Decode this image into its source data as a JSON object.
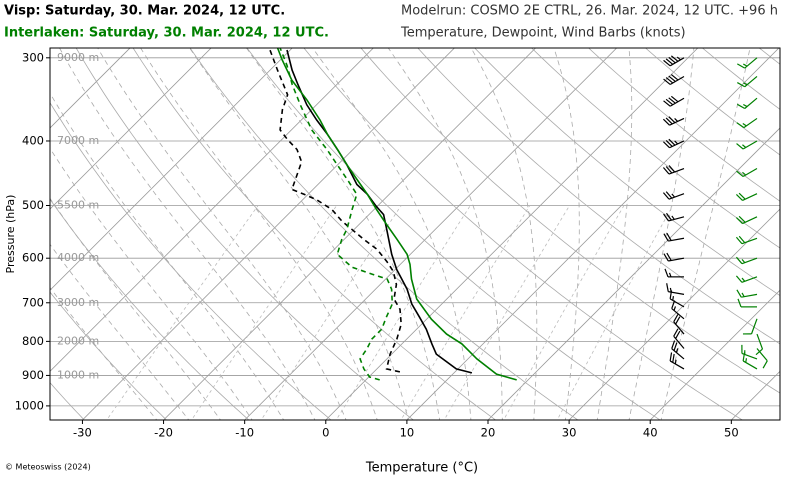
{
  "chart_data": {
    "type": "skewt",
    "header_right": [
      "Modelrun: COSMO 2E CTRL, 26. Mar. 2024, 12 UTC. +96 h",
      "Temperature, Dewpoint, Wind Barbs (knots)"
    ],
    "xlabel": "Temperature (°C)",
    "ylabel": "Pressure (hPa)",
    "footer": "© Meteoswiss (2024)",
    "xlim": [
      -34,
      56
    ],
    "xticks": [
      -30,
      -20,
      -10,
      0,
      10,
      20,
      30,
      40,
      50
    ],
    "ylim": [
      1050,
      290
    ],
    "log_y": true,
    "yticks": [
      300,
      400,
      500,
      600,
      700,
      800,
      900,
      1000
    ],
    "altitude_labels": [
      "9000 m",
      "7000 m",
      "5500 m",
      "4000 m",
      "3000 m",
      "2000 m",
      "1000 m",
      null
    ],
    "grid": true,
    "stations": [
      {
        "title": "Visp: Saturday, 30. Mar. 2024, 12 UTC.",
        "color": "#000000",
        "temperature": {
          "pressure": [
            892,
            880,
            836,
            807,
            767,
            736,
            703,
            668,
            645,
            624,
            592,
            543,
            516,
            500,
            481,
            465,
            434,
            412,
            391,
            372,
            353,
            329,
            313,
            292
          ],
          "values": [
            12.2,
            9.8,
            5.5,
            3.7,
            1.2,
            -1.1,
            -3.7,
            -6.1,
            -8.0,
            -9.8,
            -12.3,
            -16.0,
            -18.2,
            -20.3,
            -22.7,
            -25.2,
            -28.9,
            -31.9,
            -35.0,
            -38.1,
            -41.2,
            -44.8,
            -47.3,
            -50.4
          ]
        },
        "dewpoint": {
          "pressure": [
            889,
            880,
            836,
            794,
            754,
            716,
            691,
            657,
            628,
            607,
            582,
            562,
            543,
            528,
            507,
            490,
            481,
            473,
            449,
            430,
            412,
            398,
            385,
            359,
            341,
            313,
            292
          ],
          "values": [
            3.2,
            1.2,
            -0.2,
            -1.2,
            -2.5,
            -4.5,
            -6.5,
            -8.0,
            -10.0,
            -12.0,
            -14.7,
            -17.6,
            -20.3,
            -22.5,
            -25.2,
            -28.3,
            -30.5,
            -32.6,
            -33.8,
            -34.8,
            -36.9,
            -39.3,
            -41.4,
            -43.6,
            -44.8,
            -49.1,
            -52.5
          ]
        },
        "wind": {
          "pressure": [
            300,
            320,
            345,
            370,
            400,
            440,
            480,
            520,
            560,
            600,
            640,
            680,
            710,
            740,
            780,
            820,
            850,
            880
          ],
          "speed": [
            45,
            40,
            40,
            35,
            35,
            30,
            25,
            25,
            20,
            20,
            15,
            15,
            15,
            15,
            20,
            20,
            25,
            25
          ],
          "direction": [
            240,
            240,
            240,
            245,
            245,
            250,
            250,
            255,
            260,
            260,
            270,
            280,
            300,
            310,
            320,
            320,
            310,
            300
          ]
        }
      },
      {
        "title": "Interlaken: Saturday, 30. Mar. 2024, 12 UTC.",
        "color": "#008000",
        "temperature": {
          "pressure": [
            914,
            896,
            850,
            807,
            780,
            741,
            691,
            645,
            613,
            592,
            562,
            534,
            507,
            481,
            457,
            434,
            412,
            391,
            372,
            347,
            324,
            302,
            290
          ],
          "values": [
            18.6,
            15.4,
            11.1,
            7.4,
            4.3,
            0.6,
            -3.7,
            -6.8,
            -8.8,
            -10.4,
            -13.5,
            -16.6,
            -19.7,
            -22.7,
            -25.8,
            -28.9,
            -31.9,
            -35.0,
            -37.7,
            -41.8,
            -46.1,
            -49.8,
            -51.8
          ]
        },
        "dewpoint": {
          "pressure": [
            914,
            905,
            880,
            850,
            821,
            794,
            767,
            736,
            703,
            668,
            645,
            634,
            619,
            592,
            562,
            543,
            507,
            481,
            457,
            434,
            412,
            385,
            353,
            329,
            308,
            290
          ],
          "values": [
            1.7,
            0.1,
            -1.6,
            -3.3,
            -3.7,
            -4.3,
            -4.3,
            -5.2,
            -6.1,
            -8.0,
            -9.8,
            -12.3,
            -15.6,
            -19.0,
            -20.3,
            -20.9,
            -22.7,
            -24.0,
            -27.0,
            -30.1,
            -33.2,
            -37.5,
            -42.0,
            -45.5,
            -48.5,
            -51.5
          ]
        },
        "wind": {
          "pressure": [
            300,
            320,
            345,
            370,
            400,
            440,
            480,
            520,
            560,
            600,
            640,
            680,
            710,
            740,
            780,
            820,
            850,
            880
          ],
          "speed": [
            15,
            15,
            15,
            15,
            15,
            15,
            20,
            20,
            20,
            15,
            15,
            15,
            10,
            10,
            10,
            10,
            15,
            15
          ],
          "direction": [
            230,
            230,
            230,
            235,
            240,
            240,
            245,
            245,
            250,
            250,
            250,
            260,
            270,
            200,
            160,
            140,
            290,
            300
          ]
        }
      }
    ]
  }
}
